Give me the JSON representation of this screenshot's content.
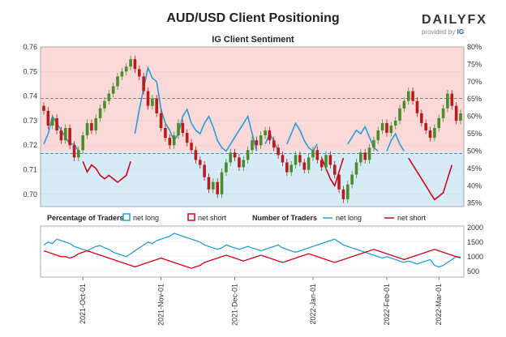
{
  "header": {
    "title": "AUD/USD Client Positioning",
    "subtitle": "IG Client Sentiment"
  },
  "brand": {
    "word": "DAILYFX",
    "provided_by": "provided by",
    "provider": "IG"
  },
  "colors": {
    "long": "#2b9cd8",
    "short": "#d0021b",
    "long_fill": "#d6ebf8",
    "short_fill": "#fbd9d9",
    "candle_up": "#4a8c2e",
    "candle_down": "#b81c1c"
  },
  "legend": {
    "pct_title": "Percentage of Traders",
    "pct_long": "net long",
    "pct_short": "net short",
    "num_title": "Number of Traders",
    "num_long": "net long",
    "num_short": "net short"
  },
  "chart_data": [
    {
      "type": "candlestick",
      "title": "IG Client Sentiment",
      "x_ticks": [
        "2021-Oct-01",
        "2021-Nov-01",
        "2021-Dec-01",
        "2022-Jan-01",
        "2022-Feb-01",
        "2022-Mar-01"
      ],
      "y_left_ticks": [
        "0.70",
        "0.71",
        "0.72",
        "0.73",
        "0.74",
        "0.75",
        "0.76"
      ],
      "ylim_left": [
        0.695,
        0.76
      ],
      "y_right_ticks": [
        "35%",
        "40%",
        "45%",
        "50%",
        "55%",
        "60%",
        "65%",
        "70%",
        "75%",
        "80%"
      ],
      "ylim_right": [
        34,
        80
      ],
      "close_series": [
        0.734,
        0.728,
        0.731,
        0.726,
        0.722,
        0.727,
        0.72,
        0.715,
        0.718,
        0.724,
        0.729,
        0.726,
        0.731,
        0.735,
        0.738,
        0.741,
        0.744,
        0.748,
        0.75,
        0.752,
        0.755,
        0.751,
        0.748,
        0.742,
        0.736,
        0.739,
        0.733,
        0.727,
        0.723,
        0.72,
        0.724,
        0.729,
        0.725,
        0.721,
        0.718,
        0.714,
        0.712,
        0.707,
        0.702,
        0.705,
        0.7,
        0.709,
        0.713,
        0.717,
        0.715,
        0.711,
        0.714,
        0.718,
        0.722,
        0.72,
        0.724,
        0.726,
        0.722,
        0.719,
        0.716,
        0.713,
        0.709,
        0.712,
        0.716,
        0.713,
        0.71,
        0.715,
        0.718,
        0.714,
        0.711,
        0.716,
        0.712,
        0.708,
        0.702,
        0.698,
        0.704,
        0.708,
        0.713,
        0.717,
        0.714,
        0.719,
        0.722,
        0.726,
        0.729,
        0.725,
        0.728,
        0.73,
        0.735,
        0.738,
        0.742,
        0.738,
        0.733,
        0.729,
        0.726,
        0.723,
        0.727,
        0.731,
        0.735,
        0.741,
        0.736,
        0.73,
        0.733
      ],
      "net_long_pct": [
        52,
        55,
        60,
        58,
        56,
        54,
        52,
        52,
        50,
        47,
        44,
        46,
        45,
        43,
        42,
        43,
        42,
        41,
        42,
        43,
        47,
        55,
        62,
        68,
        74,
        71,
        70,
        62,
        58,
        56,
        53,
        55,
        60,
        62,
        58,
        56,
        55,
        58,
        60,
        57,
        53,
        51,
        50,
        52,
        54,
        56,
        58,
        60,
        55,
        50,
        48,
        52,
        55,
        53,
        50,
        48,
        52,
        55,
        58,
        56,
        53,
        51,
        50,
        52,
        48,
        45,
        42,
        40,
        44,
        48,
        52,
        54,
        56,
        55,
        57,
        54,
        51,
        50,
        48,
        50,
        53,
        55,
        52,
        50,
        48,
        46,
        44,
        42,
        40,
        38,
        36,
        37,
        38,
        42,
        46,
        51,
        49
      ],
      "net_long_count": [
        1400,
        1500,
        1450,
        1600,
        1550,
        1500,
        1450,
        1350,
        1300,
        1250,
        1200,
        1280,
        1350,
        1380,
        1300,
        1250,
        1150,
        1100,
        1050,
        1000,
        1100,
        1200,
        1300,
        1400,
        1500,
        1450,
        1550,
        1600,
        1650,
        1700,
        1800,
        1750,
        1700,
        1650,
        1600,
        1550,
        1500,
        1400,
        1350,
        1300,
        1250,
        1300,
        1400,
        1350,
        1300,
        1250,
        1300,
        1350,
        1300,
        1250,
        1200,
        1250,
        1300,
        1350,
        1400,
        1300,
        1250,
        1200,
        1150,
        1200,
        1250,
        1300,
        1350,
        1400,
        1450,
        1500,
        1550,
        1600,
        1500,
        1400,
        1350,
        1300,
        1250,
        1200,
        1150,
        1100,
        1050,
        1000,
        950,
        1000,
        950,
        900,
        850,
        800,
        850,
        800,
        750,
        800,
        850,
        900,
        700,
        650,
        700,
        800,
        900,
        1000,
        950
      ],
      "net_short_count": [
        1200,
        1150,
        1100,
        1050,
        1000,
        1000,
        950,
        1000,
        1100,
        1150,
        1200,
        1150,
        1100,
        1050,
        1000,
        950,
        900,
        850,
        800,
        750,
        700,
        650,
        700,
        750,
        800,
        850,
        900,
        950,
        900,
        850,
        800,
        750,
        700,
        650,
        600,
        650,
        700,
        800,
        850,
        900,
        950,
        1000,
        1050,
        1000,
        950,
        900,
        850,
        900,
        950,
        1000,
        1050,
        1000,
        950,
        900,
        850,
        800,
        850,
        900,
        950,
        1000,
        1050,
        1100,
        1050,
        1000,
        950,
        900,
        850,
        800,
        850,
        900,
        950,
        1000,
        1050,
        1100,
        1150,
        1200,
        1250,
        1200,
        1150,
        1100,
        1050,
        1000,
        950,
        900,
        950,
        1000,
        1050,
        1100,
        1150,
        1200,
        1250,
        1200,
        1150,
        1100,
        1050,
        1000,
        980
      ],
      "grid": true
    },
    {
      "type": "line",
      "y_ticks": [
        "500",
        "1000",
        "1500",
        "2000"
      ],
      "ylim": [
        300,
        2050
      ],
      "series": [
        {
          "name": "net long"
        },
        {
          "name": "net short"
        }
      ]
    }
  ]
}
